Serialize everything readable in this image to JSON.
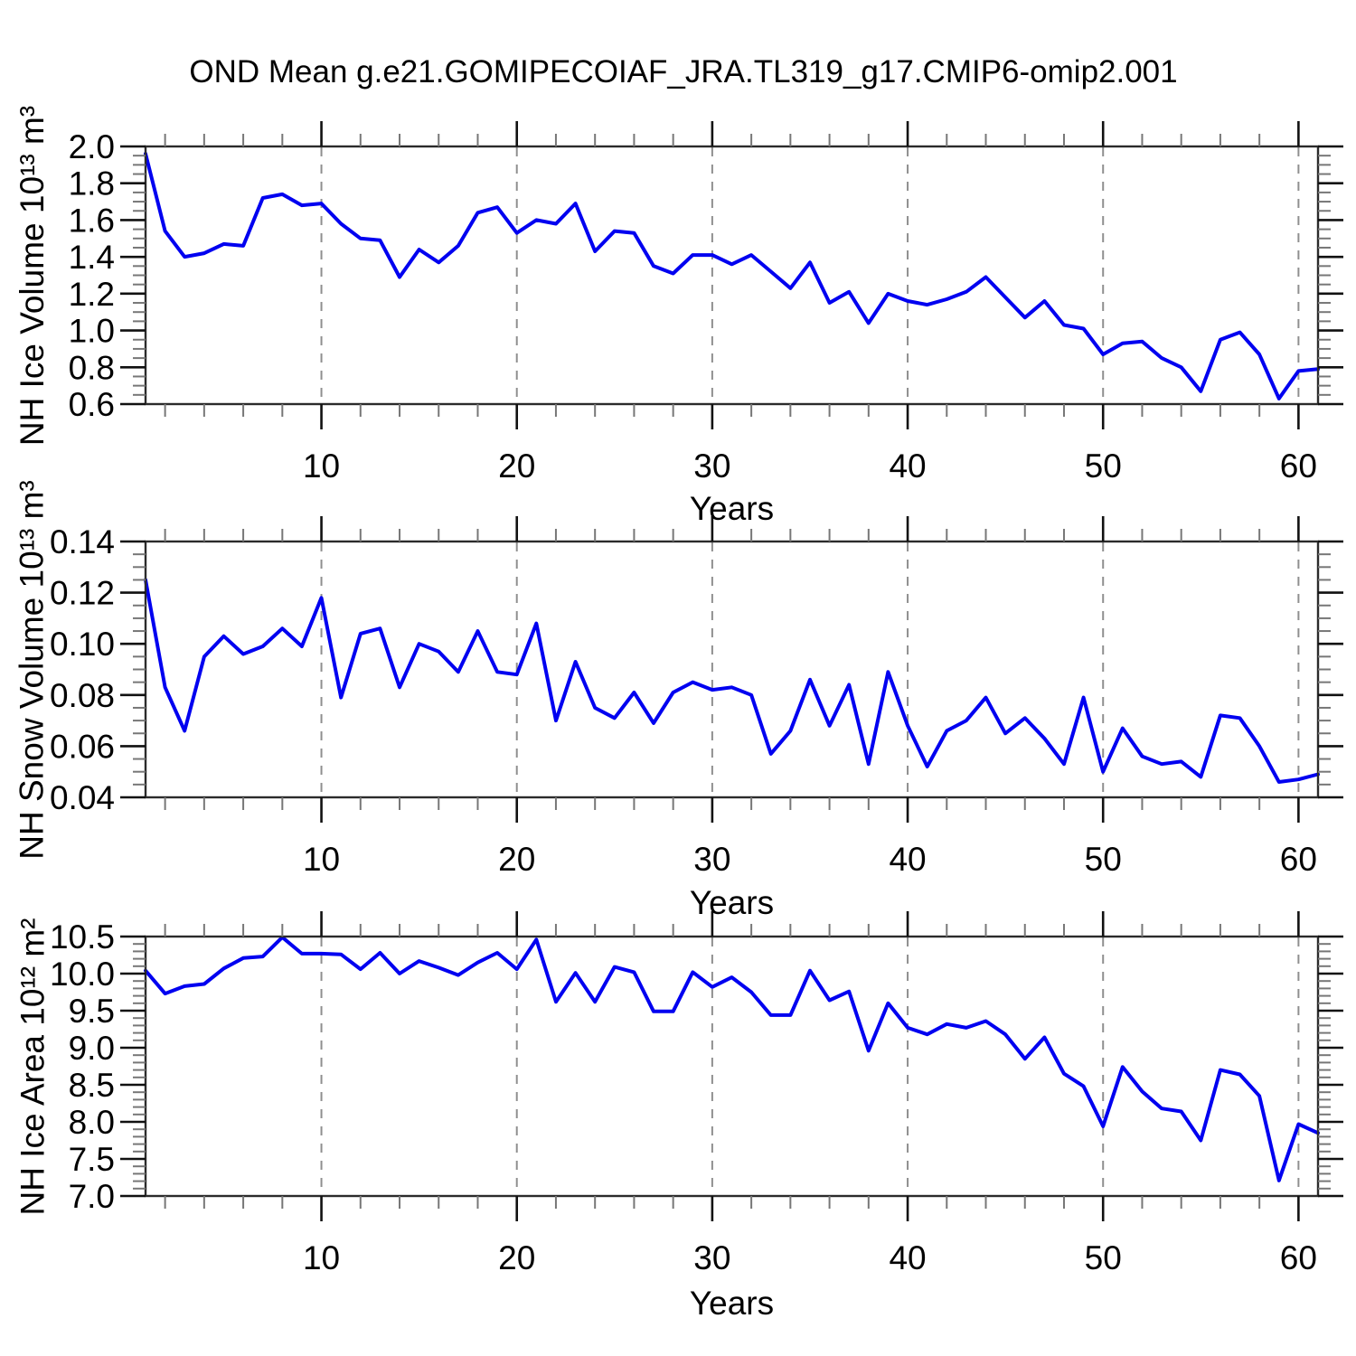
{
  "title": "OND Mean g.e21.GOMIPECOIAF_JRA.TL319_g17.CMIP6-omip2.001",
  "style": {
    "line_color": "#0000f0",
    "grid_color": "#8f8f8f",
    "border_color": "#2b2b2b",
    "major_tick_color": "#111111",
    "minor_tick_color": "#777777",
    "text_color": "#000000"
  },
  "chart_data": [
    {
      "type": "line",
      "name": "nh-ice-volume",
      "ylabel": "NH Ice Volume 10¹³ m³",
      "xlabel": "Years",
      "x_start": 1,
      "x_end": 61,
      "x_tick_values": [
        10,
        20,
        30,
        40,
        50,
        60
      ],
      "x_tick_labels": [
        "10",
        "20",
        "30",
        "40",
        "50",
        "60"
      ],
      "x_minor_step": 2,
      "ylim": [
        0.6,
        2.0
      ],
      "y_tick_values": [
        0.6,
        0.8,
        1.0,
        1.2,
        1.4,
        1.6,
        1.8,
        2.0
      ],
      "y_tick_labels": [
        "0.6",
        "0.8",
        "1.0",
        "1.2",
        "1.4",
        "1.6",
        "1.8",
        "2.0"
      ],
      "y_minor_step": 0.05,
      "grid": "vertical-dashed-at-major-x",
      "legend": "none",
      "values": [
        1.96,
        1.54,
        1.4,
        1.42,
        1.47,
        1.46,
        1.72,
        1.74,
        1.68,
        1.69,
        1.58,
        1.5,
        1.49,
        1.29,
        1.44,
        1.37,
        1.46,
        1.64,
        1.67,
        1.53,
        1.6,
        1.58,
        1.69,
        1.43,
        1.54,
        1.53,
        1.35,
        1.31,
        1.41,
        1.41,
        1.36,
        1.41,
        1.32,
        1.23,
        1.37,
        1.15,
        1.21,
        1.04,
        1.2,
        1.16,
        1.14,
        1.17,
        1.21,
        1.29,
        1.18,
        1.07,
        1.16,
        1.03,
        1.01,
        0.87,
        0.93,
        0.94,
        0.85,
        0.8,
        0.67,
        0.95,
        0.99,
        0.87,
        0.63,
        0.78,
        0.79
      ]
    },
    {
      "type": "line",
      "name": "nh-snow-volume",
      "ylabel": "NH Snow Volume 10¹³ m³",
      "xlabel": "Years",
      "x_start": 1,
      "x_end": 61,
      "x_tick_values": [
        10,
        20,
        30,
        40,
        50,
        60
      ],
      "x_tick_labels": [
        "10",
        "20",
        "30",
        "40",
        "50",
        "60"
      ],
      "x_minor_step": 2,
      "ylim": [
        0.04,
        0.14
      ],
      "y_tick_values": [
        0.04,
        0.06,
        0.08,
        0.1,
        0.12,
        0.14
      ],
      "y_tick_labels": [
        "0.04",
        "0.06",
        "0.08",
        "0.10",
        "0.12",
        "0.14"
      ],
      "y_minor_step": 0.005,
      "grid": "vertical-dashed-at-major-x",
      "legend": "none",
      "values": [
        0.125,
        0.083,
        0.066,
        0.095,
        0.103,
        0.096,
        0.099,
        0.106,
        0.099,
        0.118,
        0.079,
        0.104,
        0.106,
        0.083,
        0.1,
        0.097,
        0.089,
        0.105,
        0.089,
        0.088,
        0.108,
        0.07,
        0.093,
        0.075,
        0.071,
        0.081,
        0.069,
        0.081,
        0.085,
        0.082,
        0.083,
        0.08,
        0.057,
        0.066,
        0.086,
        0.068,
        0.084,
        0.053,
        0.089,
        0.068,
        0.052,
        0.066,
        0.07,
        0.079,
        0.065,
        0.071,
        0.063,
        0.053,
        0.079,
        0.05,
        0.067,
        0.056,
        0.053,
        0.054,
        0.048,
        0.072,
        0.071,
        0.06,
        0.046,
        0.047,
        0.049
      ]
    },
    {
      "type": "line",
      "name": "nh-ice-area",
      "ylabel": "NH Ice Area 10¹² m²",
      "xlabel": "Years",
      "x_start": 1,
      "x_end": 61,
      "x_tick_values": [
        10,
        20,
        30,
        40,
        50,
        60
      ],
      "x_tick_labels": [
        "10",
        "20",
        "30",
        "40",
        "50",
        "60"
      ],
      "x_minor_step": 2,
      "ylim": [
        7.0,
        10.5
      ],
      "y_tick_values": [
        7.0,
        7.5,
        8.0,
        8.5,
        9.0,
        9.5,
        10.0,
        10.5
      ],
      "y_tick_labels": [
        "7.0",
        "7.5",
        "8.0",
        "8.5",
        "9.0",
        "9.5",
        "10.0",
        "10.5"
      ],
      "y_minor_step": 0.1,
      "grid": "vertical-dashed-at-major-x",
      "legend": "none",
      "values": [
        10.04,
        9.73,
        9.83,
        9.86,
        10.07,
        10.21,
        10.23,
        10.49,
        10.27,
        10.27,
        10.26,
        10.06,
        10.28,
        10.0,
        10.17,
        10.08,
        9.98,
        10.15,
        10.28,
        10.06,
        10.46,
        9.62,
        10.01,
        9.62,
        10.09,
        10.02,
        9.49,
        9.49,
        10.02,
        9.82,
        9.95,
        9.75,
        9.44,
        9.44,
        10.04,
        9.64,
        9.76,
        8.96,
        9.6,
        9.27,
        9.18,
        9.32,
        9.27,
        9.36,
        9.18,
        8.85,
        9.14,
        8.65,
        8.48,
        7.94,
        8.74,
        8.41,
        8.18,
        8.14,
        7.75,
        8.7,
        8.64,
        8.35,
        7.21,
        7.97,
        7.85
      ]
    }
  ]
}
